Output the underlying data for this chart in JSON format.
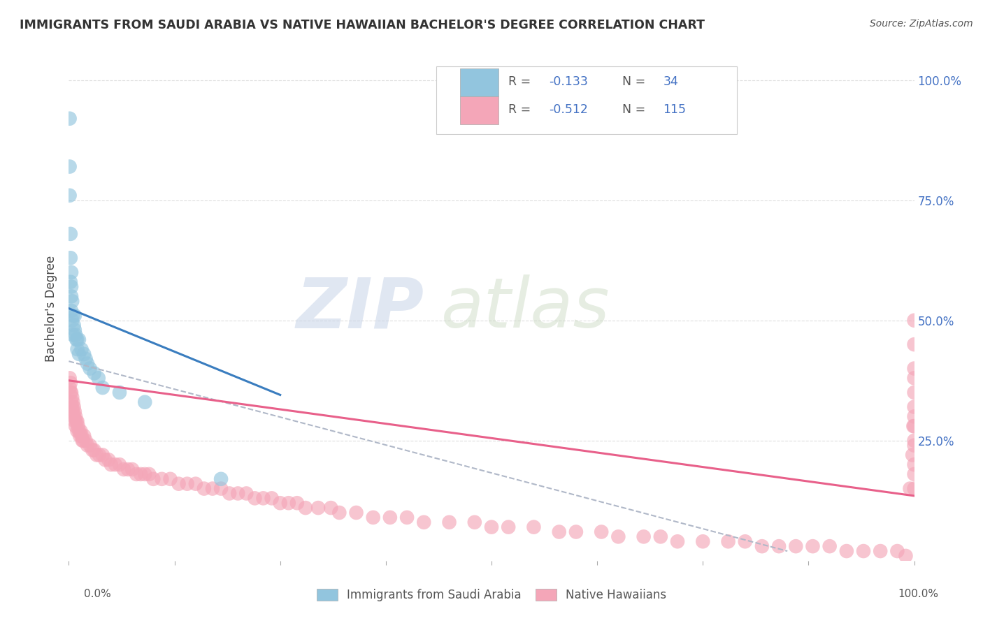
{
  "title": "IMMIGRANTS FROM SAUDI ARABIA VS NATIVE HAWAIIAN BACHELOR'S DEGREE CORRELATION CHART",
  "source_text": "Source: ZipAtlas.com",
  "ylabel": "Bachelor's Degree",
  "x_min": 0.0,
  "x_max": 1.0,
  "y_min": 0.0,
  "y_max": 1.05,
  "x_ticks": [
    0.0,
    0.25,
    0.5,
    0.75,
    1.0
  ],
  "x_tick_labels_bottom": [
    "0.0%",
    "",
    "",
    "",
    "100.0%"
  ],
  "y_ticks": [
    0.25,
    0.5,
    0.75,
    1.0
  ],
  "y_tick_labels": [
    "25.0%",
    "50.0%",
    "75.0%",
    "100.0%"
  ],
  "blue_color": "#92c5de",
  "pink_color": "#f4a6b8",
  "blue_line_color": "#3a7dbf",
  "pink_line_color": "#e8608a",
  "dashed_line_color": "#b0b8c8",
  "legend_label_blue": "Immigrants from Saudi Arabia",
  "legend_label_pink": "Native Hawaiians",
  "r_blue": "-0.133",
  "n_blue": "34",
  "r_pink": "-0.512",
  "n_pink": "115",
  "value_color": "#4472c4",
  "label_color": "#555555",
  "tick_color_right": "#4472c4",
  "background_color": "#ffffff",
  "grid_color": "#dddddd",
  "blue_scatter_x": [
    0.001,
    0.001,
    0.001,
    0.002,
    0.002,
    0.002,
    0.003,
    0.003,
    0.003,
    0.003,
    0.004,
    0.004,
    0.005,
    0.005,
    0.006,
    0.007,
    0.007,
    0.008,
    0.009,
    0.01,
    0.01,
    0.012,
    0.012,
    0.015,
    0.018,
    0.02,
    0.022,
    0.025,
    0.03,
    0.035,
    0.04,
    0.06,
    0.09,
    0.18
  ],
  "blue_scatter_y": [
    0.92,
    0.82,
    0.76,
    0.68,
    0.63,
    0.58,
    0.6,
    0.57,
    0.55,
    0.52,
    0.54,
    0.5,
    0.51,
    0.47,
    0.49,
    0.51,
    0.48,
    0.47,
    0.46,
    0.46,
    0.44,
    0.46,
    0.43,
    0.44,
    0.43,
    0.42,
    0.41,
    0.4,
    0.39,
    0.38,
    0.36,
    0.35,
    0.33,
    0.17
  ],
  "pink_scatter_x": [
    0.001,
    0.001,
    0.002,
    0.002,
    0.003,
    0.003,
    0.004,
    0.004,
    0.005,
    0.005,
    0.006,
    0.006,
    0.007,
    0.007,
    0.008,
    0.008,
    0.009,
    0.01,
    0.01,
    0.011,
    0.012,
    0.013,
    0.014,
    0.015,
    0.016,
    0.017,
    0.018,
    0.02,
    0.022,
    0.025,
    0.028,
    0.03,
    0.033,
    0.036,
    0.04,
    0.043,
    0.047,
    0.05,
    0.055,
    0.06,
    0.065,
    0.07,
    0.075,
    0.08,
    0.085,
    0.09,
    0.095,
    0.1,
    0.11,
    0.12,
    0.13,
    0.14,
    0.15,
    0.16,
    0.17,
    0.18,
    0.19,
    0.2,
    0.21,
    0.22,
    0.23,
    0.24,
    0.25,
    0.26,
    0.27,
    0.28,
    0.295,
    0.31,
    0.32,
    0.34,
    0.36,
    0.38,
    0.4,
    0.42,
    0.45,
    0.48,
    0.5,
    0.52,
    0.55,
    0.58,
    0.6,
    0.63,
    0.65,
    0.68,
    0.7,
    0.72,
    0.75,
    0.78,
    0.8,
    0.82,
    0.84,
    0.86,
    0.88,
    0.9,
    0.92,
    0.94,
    0.96,
    0.98,
    0.99,
    0.995,
    0.998,
    0.999,
    1.0,
    1.0,
    1.0,
    1.0,
    1.0,
    1.0,
    1.0,
    1.0,
    1.0,
    1.0,
    1.0,
    1.0,
    1.0
  ],
  "pink_scatter_y": [
    0.38,
    0.36,
    0.37,
    0.35,
    0.35,
    0.33,
    0.34,
    0.32,
    0.33,
    0.31,
    0.32,
    0.3,
    0.31,
    0.29,
    0.3,
    0.28,
    0.29,
    0.29,
    0.27,
    0.28,
    0.27,
    0.26,
    0.27,
    0.26,
    0.25,
    0.25,
    0.26,
    0.25,
    0.24,
    0.24,
    0.23,
    0.23,
    0.22,
    0.22,
    0.22,
    0.21,
    0.21,
    0.2,
    0.2,
    0.2,
    0.19,
    0.19,
    0.19,
    0.18,
    0.18,
    0.18,
    0.18,
    0.17,
    0.17,
    0.17,
    0.16,
    0.16,
    0.16,
    0.15,
    0.15,
    0.15,
    0.14,
    0.14,
    0.14,
    0.13,
    0.13,
    0.13,
    0.12,
    0.12,
    0.12,
    0.11,
    0.11,
    0.11,
    0.1,
    0.1,
    0.09,
    0.09,
    0.09,
    0.08,
    0.08,
    0.08,
    0.07,
    0.07,
    0.07,
    0.06,
    0.06,
    0.06,
    0.05,
    0.05,
    0.05,
    0.04,
    0.04,
    0.04,
    0.04,
    0.03,
    0.03,
    0.03,
    0.03,
    0.03,
    0.02,
    0.02,
    0.02,
    0.02,
    0.01,
    0.15,
    0.22,
    0.28,
    0.5,
    0.35,
    0.4,
    0.3,
    0.25,
    0.2,
    0.45,
    0.38,
    0.32,
    0.28,
    0.18,
    0.24,
    0.15
  ],
  "blue_line_x": [
    0.0,
    0.25
  ],
  "blue_line_y": [
    0.525,
    0.345
  ],
  "pink_line_x": [
    0.0,
    1.0
  ],
  "pink_line_y": [
    0.375,
    0.135
  ],
  "dash_line_x": [
    0.0,
    0.85
  ],
  "dash_line_y": [
    0.415,
    0.02
  ]
}
